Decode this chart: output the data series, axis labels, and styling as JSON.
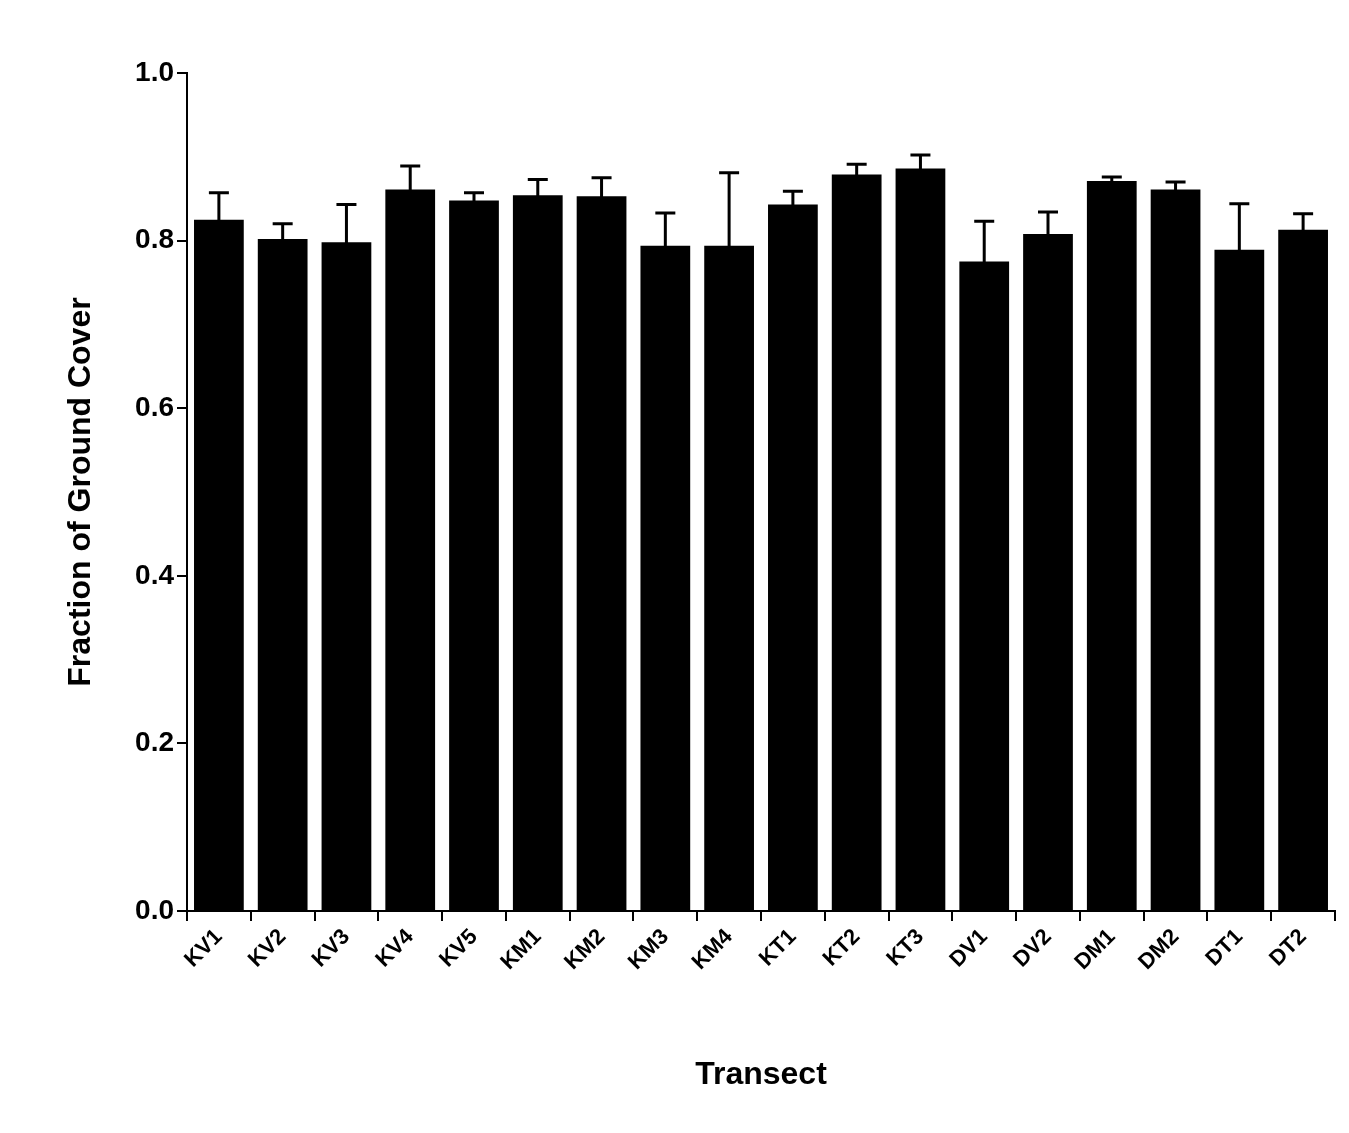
{
  "chart_data": {
    "type": "bar",
    "xlabel": "Transect",
    "ylabel": "Fraction of Ground Cover",
    "categories": [
      "KV1",
      "KV2",
      "KV3",
      "KV4",
      "KV5",
      "KM1",
      "KM2",
      "KM3",
      "KM4",
      "KT1",
      "KT2",
      "KT3",
      "DV1",
      "DV2",
      "DM1",
      "DM2",
      "DT1",
      "DT2"
    ],
    "values": [
      0.825,
      0.802,
      0.798,
      0.861,
      0.848,
      0.854,
      0.853,
      0.794,
      0.794,
      0.843,
      0.879,
      0.886,
      0.775,
      0.808,
      0.871,
      0.861,
      0.789,
      0.813
    ],
    "errors": [
      0.032,
      0.018,
      0.045,
      0.028,
      0.009,
      0.019,
      0.022,
      0.039,
      0.087,
      0.016,
      0.012,
      0.016,
      0.048,
      0.026,
      0.005,
      0.009,
      0.055,
      0.019
    ],
    "color": "#000000",
    "ylim": [
      0,
      1
    ],
    "yticks": [
      {
        "value": 0,
        "label": "0.0"
      },
      {
        "value": 0.2,
        "label": "0.2"
      },
      {
        "value": 0.4,
        "label": "0.4"
      },
      {
        "value": 0.6,
        "label": "0.6"
      },
      {
        "value": 0.8,
        "label": "0.8"
      },
      {
        "value": 1,
        "label": "1.0"
      }
    ]
  }
}
